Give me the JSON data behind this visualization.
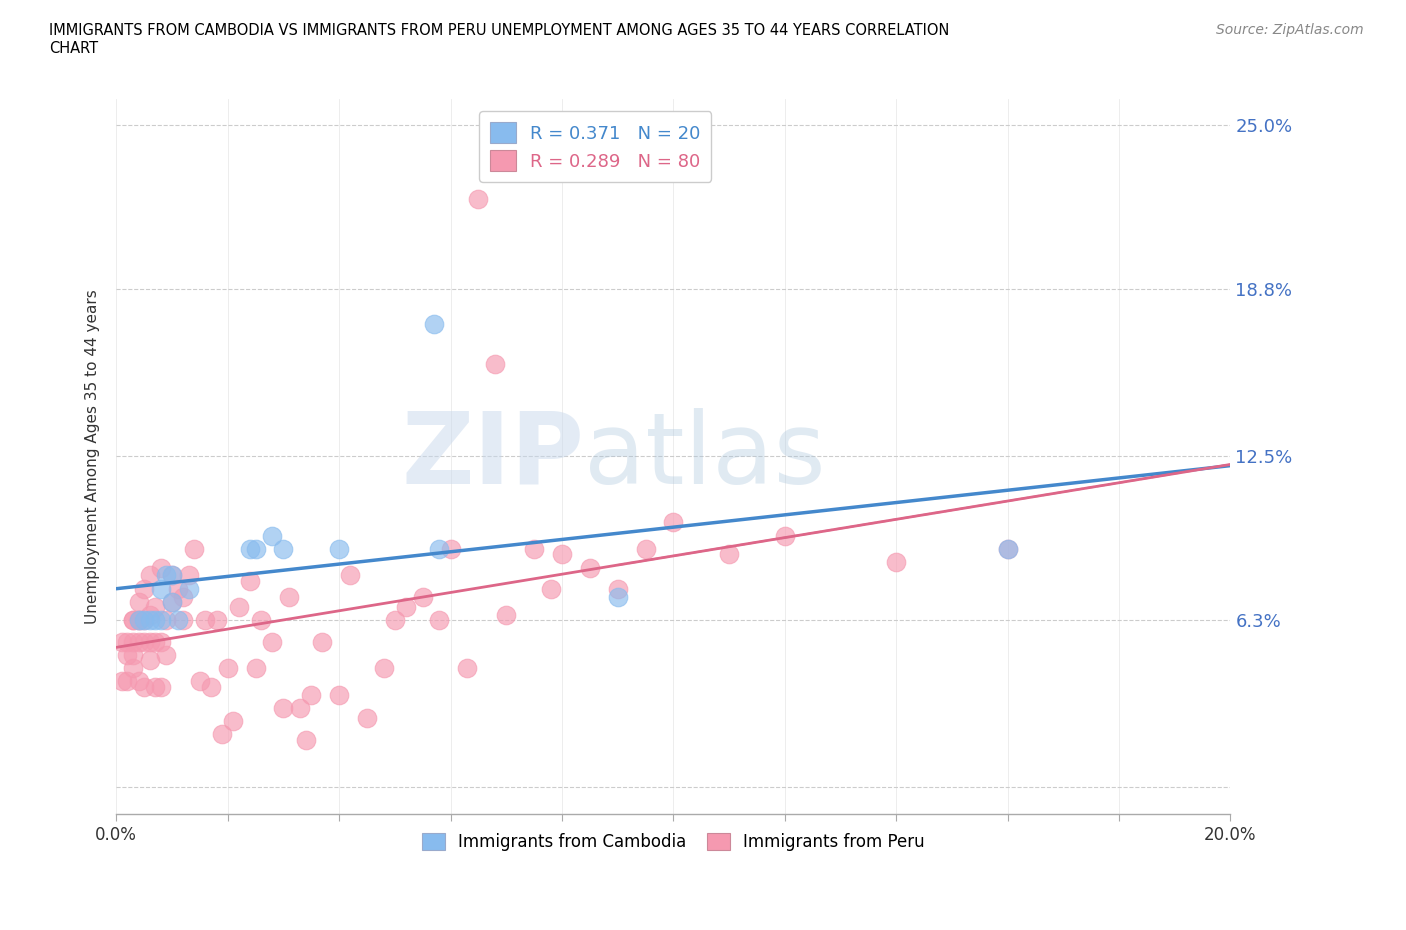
{
  "title": "IMMIGRANTS FROM CAMBODIA VS IMMIGRANTS FROM PERU UNEMPLOYMENT AMONG AGES 35 TO 44 YEARS CORRELATION\nCHART",
  "source": "Source: ZipAtlas.com",
  "ylabel": "Unemployment Among Ages 35 to 44 years",
  "xlim": [
    0.0,
    0.2
  ],
  "ylim": [
    -0.01,
    0.26
  ],
  "yplot_min": 0.0,
  "yplot_max": 0.25,
  "ytick_positions": [
    0.0,
    0.063,
    0.125,
    0.188,
    0.25
  ],
  "ytick_labels": [
    "",
    "6.3%",
    "12.5%",
    "18.8%",
    "25.0%"
  ],
  "xtick_vals": [
    0.0,
    0.02,
    0.04,
    0.06,
    0.08,
    0.1,
    0.12,
    0.14,
    0.16,
    0.18,
    0.2
  ],
  "xtick_labels": [
    "0.0%",
    "",
    "",
    "",
    "",
    "",
    "",
    "",
    "",
    "",
    "20.0%"
  ],
  "watermark_zip": "ZIP",
  "watermark_atlas": "atlas",
  "legend_r1": "R = 0.371   N = 20",
  "legend_r2": "R = 0.289   N = 80",
  "color_cambodia": "#88bbee",
  "color_peru": "#f599b0",
  "color_line_cambodia": "#4488cc",
  "color_line_peru": "#dd6688",
  "color_ytick": "#4472c4",
  "color_xtick": "#333333",
  "grid_color": "#cccccc",
  "cambodia_x": [
    0.004,
    0.005,
    0.006,
    0.007,
    0.008,
    0.008,
    0.009,
    0.01,
    0.01,
    0.011,
    0.013,
    0.024,
    0.025,
    0.028,
    0.03,
    0.04,
    0.057,
    0.058,
    0.09,
    0.16
  ],
  "cambodia_y": [
    0.063,
    0.063,
    0.063,
    0.063,
    0.063,
    0.075,
    0.08,
    0.07,
    0.08,
    0.063,
    0.075,
    0.09,
    0.09,
    0.095,
    0.09,
    0.09,
    0.175,
    0.09,
    0.072,
    0.09
  ],
  "peru_x": [
    0.001,
    0.001,
    0.002,
    0.002,
    0.002,
    0.003,
    0.003,
    0.003,
    0.003,
    0.003,
    0.004,
    0.004,
    0.004,
    0.004,
    0.004,
    0.005,
    0.005,
    0.005,
    0.005,
    0.006,
    0.006,
    0.006,
    0.006,
    0.007,
    0.007,
    0.007,
    0.008,
    0.008,
    0.008,
    0.009,
    0.009,
    0.01,
    0.01,
    0.011,
    0.012,
    0.012,
    0.013,
    0.014,
    0.015,
    0.016,
    0.017,
    0.018,
    0.019,
    0.02,
    0.021,
    0.022,
    0.024,
    0.025,
    0.026,
    0.028,
    0.03,
    0.031,
    0.033,
    0.034,
    0.035,
    0.037,
    0.04,
    0.042,
    0.045,
    0.048,
    0.05,
    0.052,
    0.055,
    0.058,
    0.06,
    0.063,
    0.065,
    0.068,
    0.07,
    0.075,
    0.078,
    0.08,
    0.085,
    0.09,
    0.095,
    0.1,
    0.11,
    0.12,
    0.14,
    0.16
  ],
  "peru_y": [
    0.055,
    0.04,
    0.055,
    0.05,
    0.04,
    0.063,
    0.045,
    0.055,
    0.063,
    0.05,
    0.04,
    0.055,
    0.063,
    0.063,
    0.07,
    0.038,
    0.055,
    0.063,
    0.075,
    0.048,
    0.055,
    0.065,
    0.08,
    0.038,
    0.055,
    0.068,
    0.038,
    0.055,
    0.083,
    0.05,
    0.063,
    0.07,
    0.08,
    0.075,
    0.063,
    0.072,
    0.08,
    0.09,
    0.04,
    0.063,
    0.038,
    0.063,
    0.02,
    0.045,
    0.025,
    0.068,
    0.078,
    0.045,
    0.063,
    0.055,
    0.03,
    0.072,
    0.03,
    0.018,
    0.035,
    0.055,
    0.035,
    0.08,
    0.026,
    0.045,
    0.063,
    0.068,
    0.072,
    0.063,
    0.09,
    0.045,
    0.222,
    0.16,
    0.065,
    0.09,
    0.075,
    0.088,
    0.083,
    0.075,
    0.09,
    0.1,
    0.088,
    0.095,
    0.085,
    0.09
  ]
}
